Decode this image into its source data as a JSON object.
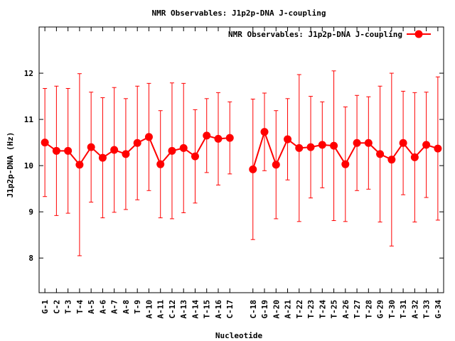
{
  "chart_data": {
    "type": "line",
    "title": "NMR Observables: J1p2p-DNA J-coupling",
    "xlabel": "Nucleotide",
    "ylabel": "J1p2p-DNA (Hz)",
    "ylim": [
      7.25,
      13.0
    ],
    "yticks": [
      8,
      9,
      10,
      11,
      12
    ],
    "grid": false,
    "legend_position": "top-right",
    "colors": {
      "series": "#ff0000",
      "axis": "#000000"
    },
    "categories": [
      "G-1",
      "C-2",
      "T-3",
      "T-4",
      "A-5",
      "A-6",
      "A-7",
      "A-8",
      "T-9",
      "A-10",
      "A-11",
      "C-12",
      "A-13",
      "A-14",
      "T-15",
      "A-16",
      "C-17",
      "C-18",
      "G-19",
      "A-20",
      "A-21",
      "T-22",
      "T-23",
      "T-24",
      "T-25",
      "A-26",
      "T-27",
      "T-28",
      "G-29",
      "T-30",
      "T-31",
      "A-32",
      "T-33",
      "G-34"
    ],
    "x": [
      1,
      2,
      3,
      4,
      5,
      6,
      7,
      8,
      9,
      10,
      11,
      12,
      13,
      14,
      15,
      16,
      17,
      19,
      20,
      21,
      22,
      23,
      24,
      25,
      26,
      27,
      28,
      29,
      30,
      31,
      32,
      33,
      34,
      35
    ],
    "series": [
      {
        "name": "NMR Observables: J1p2p-DNA J-coupling",
        "values": [
          10.5,
          10.32,
          10.32,
          10.02,
          10.4,
          10.17,
          10.34,
          10.25,
          10.49,
          10.62,
          10.03,
          10.32,
          10.38,
          10.2,
          10.65,
          10.58,
          10.6,
          9.92,
          10.73,
          10.02,
          10.57,
          10.38,
          10.4,
          10.45,
          10.43,
          10.03,
          10.49,
          10.49,
          10.25,
          10.13,
          10.49,
          10.18,
          10.45,
          10.37
        ],
        "errors": [
          1.17,
          1.4,
          1.35,
          1.97,
          1.19,
          1.3,
          1.35,
          1.2,
          1.23,
          1.16,
          1.16,
          1.47,
          1.4,
          1.01,
          0.8,
          1.0,
          0.78,
          1.52,
          0.84,
          1.17,
          0.88,
          1.59,
          1.1,
          0.93,
          1.62,
          1.24,
          1.03,
          1.0,
          1.47,
          1.87,
          1.12,
          1.4,
          1.14,
          1.55
        ]
      }
    ],
    "missing_between": [
      17,
      19
    ]
  }
}
